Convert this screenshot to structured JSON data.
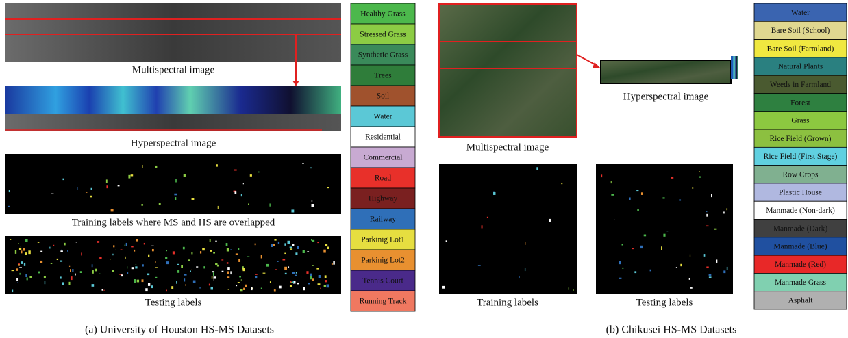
{
  "panel_a": {
    "multispectral_label": "Multispectral image",
    "hyperspectral_label": "Hyperspectral image",
    "training_label": "Training labels where MS and HS are overlapped",
    "testing_label": "Testing labels",
    "caption": "(a) University of Houston HS-MS Datasets",
    "legend": [
      {
        "label": "Healthy Grass",
        "color": "#4cb84c"
      },
      {
        "label": "Stressed Grass",
        "color": "#8ccc44"
      },
      {
        "label": "Synthetic Grass",
        "color": "#3a8a5a"
      },
      {
        "label": "Trees",
        "color": "#2f7d3a"
      },
      {
        "label": "Soil",
        "color": "#a0522d"
      },
      {
        "label": "Water",
        "color": "#5bc8d6"
      },
      {
        "label": "Residential",
        "color": "#ffffff"
      },
      {
        "label": "Commercial",
        "color": "#c8aad2"
      },
      {
        "label": "Road",
        "color": "#e8302a"
      },
      {
        "label": "Highway",
        "color": "#7a2020"
      },
      {
        "label": "Railway",
        "color": "#2f6fb8"
      },
      {
        "label": "Parkinig Lot1",
        "color": "#e6de40"
      },
      {
        "label": "Parkinig Lot2",
        "color": "#e89030"
      },
      {
        "label": "Tennis Court",
        "color": "#4a2a8a"
      },
      {
        "label": "Running Track",
        "color": "#f07860"
      }
    ]
  },
  "panel_b": {
    "multispectral_label": "Multispectral image",
    "hyperspectral_label": "Hyperspectral image",
    "training_label": "Training labels",
    "testing_label": "Testing labels",
    "caption": "(b) Chikusei HS-MS Datasets",
    "legend": [
      {
        "label": "Water",
        "color": "#3a64b0"
      },
      {
        "label": "Bare Soil (School)",
        "color": "#e0d890"
      },
      {
        "label": "Bare Soil (Farmland)",
        "color": "#f0e840"
      },
      {
        "label": "Natural Plants",
        "color": "#2a8080"
      },
      {
        "label": "Weeds in Farmland",
        "color": "#4a5a30"
      },
      {
        "label": "Forest",
        "color": "#2e8040"
      },
      {
        "label": "Grass",
        "color": "#8cc840"
      },
      {
        "label": "Rice Field (Grown)",
        "color": "#8cc040"
      },
      {
        "label": "Rice Field (First Stage)",
        "color": "#60d0e0"
      },
      {
        "label": "Row Crops",
        "color": "#80b090"
      },
      {
        "label": "Plastic House",
        "color": "#b0b8e0"
      },
      {
        "label": "Manmade (Non-dark)",
        "color": "#ffffff"
      },
      {
        "label": "Manmade (Dark)",
        "color": "#404040"
      },
      {
        "label": "Manmade (Blue)",
        "color": "#2050a0"
      },
      {
        "label": "Manmade (Red)",
        "color": "#e82828"
      },
      {
        "label": "Manmade Grass",
        "color": "#80d0b0"
      },
      {
        "label": "Asphalt",
        "color": "#b0b0b0"
      }
    ]
  }
}
